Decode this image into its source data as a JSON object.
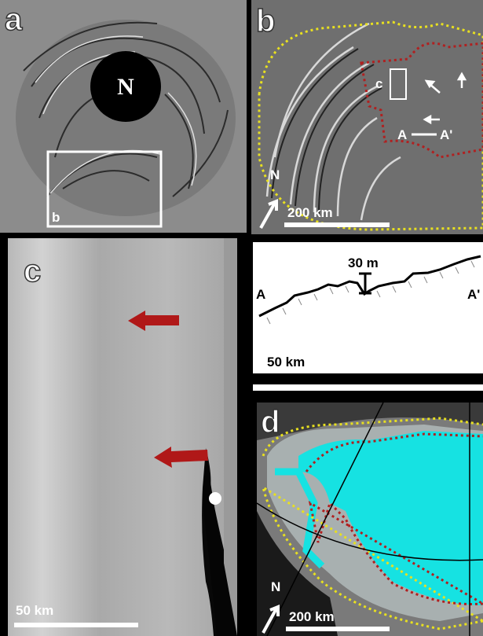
{
  "panels": {
    "a": {
      "label": "a",
      "pole_label": "N",
      "inset_label": "b"
    },
    "b": {
      "label": "b",
      "inset_label": "c",
      "section_start": "A",
      "section_end": "A'",
      "north": "N",
      "scale": "200 km"
    },
    "c": {
      "label": "c",
      "scale": "50 km"
    },
    "profile": {
      "height": "30 m",
      "start": "A",
      "end": "A'",
      "scale": "50 km"
    },
    "d": {
      "label": "d",
      "north": "N",
      "scale": "200 km"
    }
  }
}
